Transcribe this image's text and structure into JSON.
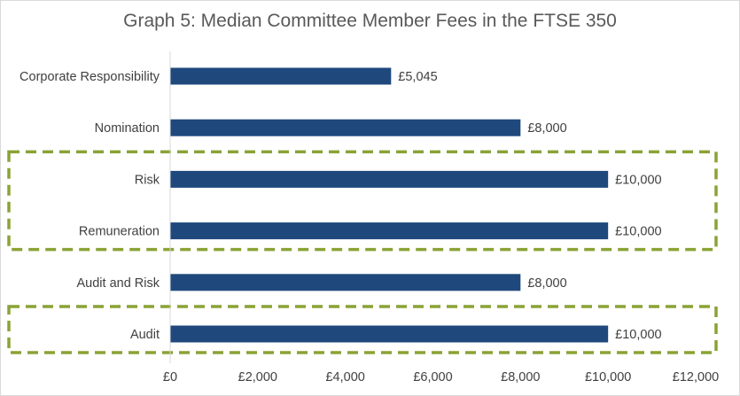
{
  "chart_data": {
    "type": "bar",
    "orientation": "horizontal",
    "title": "Graph 5: Median Committee Member Fees in the FTSE 350",
    "categories": [
      "Corporate Responsibility",
      "Nomination",
      "Risk",
      "Remuneration",
      "Audit and Risk",
      "Audit"
    ],
    "values": [
      5045,
      8000,
      10000,
      10000,
      8000,
      10000
    ],
    "data_labels": [
      "£5,045",
      "£8,000",
      "£10,000",
      "£10,000",
      "£8,000",
      "£10,000"
    ],
    "xlim": [
      0,
      12000
    ],
    "xticks": [
      0,
      2000,
      4000,
      6000,
      8000,
      10000,
      12000
    ],
    "xtick_labels": [
      "£0",
      "£2,000",
      "£4,000",
      "£6,000",
      "£8,000",
      "£10,000",
      "£12,000"
    ],
    "grid": false,
    "legend": "none",
    "highlight_groups": [
      [
        "Risk",
        "Remuneration"
      ],
      [
        "Audit"
      ]
    ],
    "colors": {
      "bar": "#1f497d",
      "highlight_box": "#8aa336",
      "text": "#404040",
      "title": "#595959",
      "axis": "#d9d9d9"
    }
  }
}
